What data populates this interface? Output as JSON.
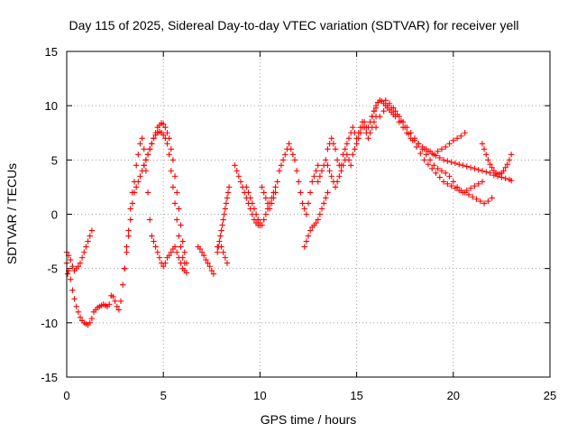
{
  "chart_data": {
    "type": "scatter",
    "title": "Day 115 of 2025, Sidereal Day-to-day VTEC variation (SDTVAR) for receiver yell",
    "xlabel": "GPS time / hours",
    "ylabel": "SDTVAR / TECUs",
    "xlim": [
      0,
      25
    ],
    "ylim": [
      -15,
      15
    ],
    "xticks": [
      "0",
      "5",
      "10",
      "15",
      "20",
      "25"
    ],
    "yticks": [
      "-15",
      "-10",
      "-5",
      "0",
      "5",
      "10",
      "15"
    ],
    "grid": true,
    "marker": "plus",
    "color": "#ff0000",
    "series": [
      {
        "name": "trace-1",
        "x": [
          0.0,
          0.05,
          0.1,
          0.2,
          0.3,
          0.4,
          0.5,
          0.6,
          0.7,
          0.8,
          0.9,
          1.0,
          1.1,
          1.2,
          1.3,
          1.4,
          1.5,
          1.6,
          1.7,
          1.8,
          1.9,
          2.0,
          2.1,
          2.2,
          2.3,
          2.4,
          2.5,
          2.6,
          2.7,
          2.8,
          2.9,
          3.0,
          3.1,
          3.2,
          3.3,
          3.4,
          3.5,
          3.6,
          3.7,
          3.8,
          3.9,
          4.0,
          4.1,
          4.2,
          4.3,
          4.4,
          4.5,
          4.6,
          4.7,
          4.8,
          4.9,
          5.0,
          5.1,
          5.2,
          5.3,
          5.4,
          5.5,
          5.6,
          5.7,
          5.8,
          5.9,
          6.0,
          6.1,
          6.2
        ],
        "y": [
          -4.5,
          -5.5,
          -5.2,
          -6.0,
          -7.0,
          -7.8,
          -8.5,
          -9.0,
          -9.5,
          -9.8,
          -10.0,
          -10.1,
          -10.2,
          -10.0,
          -9.6,
          -9.0,
          -8.8,
          -8.6,
          -8.5,
          -8.4,
          -8.3,
          -8.4,
          -8.5,
          -8.3,
          -7.5,
          -7.6,
          -8.0,
          -8.5,
          -8.8,
          -8.0,
          -6.5,
          -5.0,
          -3.0,
          -1.5,
          0.5,
          2.0,
          3.0,
          4.5,
          5.5,
          6.5,
          7.0,
          6.0,
          4.0,
          2.0,
          -0.5,
          -2.0,
          -2.5,
          -3.0,
          -3.5,
          -4.0,
          -4.5,
          -4.8,
          -4.5,
          -4.0,
          -3.8,
          -3.5,
          -3.2,
          -3.0,
          -3.5,
          -4.0,
          -4.5,
          -5.0,
          -5.2,
          -5.4
        ]
      },
      {
        "name": "trace-2",
        "x": [
          0.0,
          0.1,
          0.2,
          0.3,
          0.4,
          0.5,
          0.6,
          0.7,
          0.8,
          0.9,
          1.0,
          1.1,
          1.2,
          1.3,
          3.0,
          3.1,
          3.2,
          3.3,
          3.4,
          3.5,
          3.6,
          3.7,
          3.8,
          3.9,
          4.0,
          4.1,
          4.2,
          4.3,
          4.4,
          4.5,
          4.6,
          4.7,
          4.8,
          4.9,
          5.0,
          5.1,
          5.2,
          5.3,
          5.4,
          5.5,
          5.6,
          5.7,
          5.8,
          5.9,
          6.0,
          6.1,
          6.2
        ],
        "y": [
          -3.5,
          -3.8,
          -4.2,
          -4.8,
          -5.2,
          -5.0,
          -4.8,
          -4.5,
          -4.0,
          -3.5,
          -3.0,
          -2.5,
          -2.0,
          -1.5,
          -5.0,
          -3.5,
          -2.0,
          -0.5,
          1.0,
          2.0,
          2.5,
          3.0,
          3.5,
          4.0,
          4.5,
          5.0,
          5.5,
          6.0,
          6.5,
          7.0,
          7.5,
          8.0,
          8.2,
          8.4,
          8.3,
          8.0,
          7.5,
          7.0,
          6.0,
          5.0,
          3.5,
          2.0,
          0.5,
          -1.0,
          -2.5,
          -3.5,
          -4.5
        ]
      },
      {
        "name": "trace-3",
        "x": [
          4.0,
          4.1,
          4.2,
          4.3,
          4.4,
          4.5,
          4.6,
          4.7,
          4.8,
          4.9,
          5.0,
          5.1,
          5.2,
          5.3,
          5.4,
          5.5,
          5.6,
          5.7,
          5.8,
          5.9,
          6.0,
          6.1
        ],
        "y": [
          4.5,
          5.0,
          5.5,
          6.0,
          6.5,
          7.0,
          7.3,
          7.5,
          7.6,
          7.5,
          7.3,
          7.0,
          6.5,
          5.5,
          4.0,
          2.5,
          1.0,
          -0.5,
          -2.0,
          -3.0,
          -4.0,
          -4.5
        ]
      },
      {
        "name": "trace-4",
        "x": [
          6.8,
          6.9,
          7.0,
          7.1,
          7.2,
          7.3,
          7.4,
          7.5,
          7.6,
          7.8,
          8.0,
          8.1,
          8.2,
          8.3,
          8.7,
          8.8,
          8.9,
          9.0,
          9.1,
          9.2,
          9.3,
          9.4,
          9.5,
          9.6,
          9.7,
          9.8,
          9.9,
          10.0
        ],
        "y": [
          -3.0,
          -3.2,
          -3.5,
          -3.8,
          -4.2,
          -4.5,
          -4.8,
          -5.2,
          -5.5,
          -3.0,
          -3.0,
          -3.5,
          -4.0,
          -4.5,
          4.5,
          4.0,
          3.5,
          3.0,
          2.5,
          2.0,
          1.5,
          1.0,
          0.5,
          0.0,
          -0.5,
          -0.8,
          -1.0,
          -1.0
        ]
      },
      {
        "name": "trace-5",
        "x": [
          7.8,
          7.85,
          7.9,
          7.95,
          8.0,
          8.05,
          8.1,
          8.15,
          8.2,
          8.25,
          8.3,
          8.35,
          8.4
        ],
        "y": [
          -3.5,
          -3.0,
          -2.5,
          -2.0,
          -1.5,
          -1.0,
          -0.5,
          0.0,
          0.5,
          1.0,
          1.5,
          2.0,
          2.5
        ]
      },
      {
        "name": "trace-6",
        "x": [
          9.3,
          9.4,
          9.5,
          9.6,
          9.7,
          9.8,
          9.9,
          10.0,
          10.1,
          10.2,
          10.3,
          10.4,
          10.5,
          10.6,
          10.7,
          10.8,
          10.9,
          11.0,
          11.1,
          11.2,
          11.3,
          11.4,
          11.5,
          11.6,
          11.7,
          11.8,
          11.9,
          12.0,
          12.1,
          12.2,
          12.3,
          12.4,
          12.5,
          12.6,
          12.7,
          12.8,
          12.9,
          13.0
        ],
        "y": [
          2.5,
          2.0,
          1.5,
          1.0,
          0.5,
          0.0,
          -0.5,
          -1.0,
          2.5,
          2.0,
          1.5,
          1.0,
          0.5,
          1.0,
          1.5,
          2.0,
          3.0,
          4.0,
          4.5,
          5.0,
          5.5,
          6.0,
          6.5,
          6.0,
          5.5,
          5.0,
          4.0,
          3.0,
          2.0,
          1.0,
          0.5,
          0.0,
          1.0,
          2.0,
          3.0,
          3.5,
          4.0,
          4.5
        ]
      },
      {
        "name": "trace-7",
        "x": [
          9.9,
          10.0,
          10.1,
          10.2,
          10.3,
          10.4,
          10.5,
          10.6,
          10.7,
          10.8
        ],
        "y": [
          -0.5,
          -0.8,
          -1.0,
          -0.5,
          0.0,
          0.5,
          1.0,
          1.5,
          2.0,
          2.5
        ]
      },
      {
        "name": "trace-8",
        "x": [
          12.3,
          12.4,
          12.5,
          12.6,
          12.7,
          12.8,
          12.9,
          13.0,
          13.1,
          13.2,
          13.3,
          13.4,
          13.5
        ],
        "y": [
          -3.0,
          -2.5,
          -2.0,
          -1.5,
          -1.2,
          -1.0,
          -0.8,
          -0.5,
          0.0,
          0.5,
          1.0,
          1.5,
          2.0
        ]
      },
      {
        "name": "trace-9",
        "x": [
          13.0,
          13.1,
          13.2,
          13.3,
          13.4,
          13.5,
          13.6,
          13.7,
          13.8,
          13.9,
          14.0,
          14.1,
          14.2,
          14.3,
          14.4,
          14.5,
          14.6,
          14.7,
          14.8,
          14.9,
          15.0,
          15.1,
          15.2,
          15.3,
          15.4,
          15.5,
          15.6,
          15.7,
          15.8,
          15.9,
          16.0
        ],
        "y": [
          3.0,
          3.5,
          4.0,
          4.5,
          5.0,
          4.5,
          4.0,
          3.5,
          3.0,
          2.5,
          3.0,
          3.5,
          4.5,
          5.5,
          6.0,
          6.5,
          7.0,
          7.5,
          8.0,
          7.5,
          7.0,
          7.5,
          8.0,
          8.5,
          8.5,
          8.0,
          8.0,
          8.5,
          9.0,
          9.5,
          9.8
        ]
      },
      {
        "name": "trace-10",
        "x": [
          13.5,
          13.6,
          13.7,
          13.8,
          13.9,
          14.0,
          14.1,
          14.2,
          14.3,
          14.4,
          14.5,
          14.6,
          14.7,
          14.8,
          14.9,
          15.0,
          15.1,
          15.2,
          15.3,
          15.4,
          15.5,
          15.6,
          15.7,
          15.8,
          15.9,
          16.0
        ],
        "y": [
          6.0,
          6.5,
          7.0,
          6.5,
          6.0,
          5.0,
          4.5,
          4.0,
          4.5,
          5.0,
          5.5,
          5.0,
          4.5,
          5.5,
          6.0,
          6.5,
          7.0,
          7.5,
          8.0,
          8.0,
          7.5,
          7.0,
          7.5,
          8.0,
          8.5,
          9.0
        ]
      },
      {
        "name": "trace-11",
        "x": [
          15.8,
          15.9,
          16.0,
          16.1,
          16.2,
          16.3,
          16.4,
          16.5,
          16.6,
          16.7,
          16.8,
          16.9,
          17.0,
          17.2,
          17.4,
          17.6,
          17.8,
          18.0,
          18.2,
          18.4,
          18.6,
          18.8,
          19.0,
          19.2,
          19.4,
          19.6,
          19.8,
          20.0,
          20.2,
          20.4,
          20.6
        ],
        "y": [
          9.0,
          9.5,
          10.0,
          10.3,
          10.5,
          10.4,
          10.2,
          10.0,
          9.8,
          9.6,
          9.4,
          9.2,
          9.0,
          8.5,
          8.0,
          7.5,
          7.0,
          6.8,
          6.5,
          6.2,
          6.0,
          5.8,
          5.5,
          5.8,
          6.0,
          6.2,
          6.5,
          6.8,
          7.0,
          7.2,
          7.5
        ]
      },
      {
        "name": "trace-12",
        "x": [
          16.0,
          16.2,
          16.4,
          16.6,
          16.8,
          17.0,
          17.2,
          17.4,
          17.6,
          17.8,
          18.0,
          18.2,
          18.4,
          18.6,
          18.8,
          19.0,
          19.2,
          19.4,
          19.6,
          19.8,
          20.0,
          20.2,
          20.4,
          20.6,
          20.8,
          21.0,
          21.2,
          21.4,
          21.6,
          21.8,
          22.0
        ],
        "y": [
          8.0,
          9.0,
          9.5,
          10.0,
          9.8,
          9.5,
          9.0,
          8.5,
          8.0,
          7.5,
          7.0,
          6.5,
          6.0,
          5.5,
          5.0,
          4.5,
          4.2,
          4.0,
          3.8,
          3.5,
          3.0,
          2.5,
          2.2,
          2.0,
          1.8,
          1.6,
          1.4,
          1.2,
          1.0,
          1.2,
          1.5
        ]
      },
      {
        "name": "trace-13",
        "x": [
          16.5,
          16.7,
          16.9,
          17.1,
          17.3,
          17.5,
          17.7,
          17.9,
          18.1,
          18.3,
          18.5,
          18.7,
          18.9,
          19.1,
          19.3,
          19.5,
          19.7,
          19.9,
          20.1,
          20.3,
          20.5,
          20.7,
          20.9,
          21.1,
          21.3,
          21.5
        ],
        "y": [
          10.5,
          10.2,
          9.8,
          9.2,
          8.6,
          8.0,
          7.4,
          6.8,
          6.2,
          5.6,
          5.0,
          4.6,
          4.2,
          3.8,
          3.4,
          3.0,
          2.8,
          2.6,
          2.4,
          2.2,
          2.0,
          2.2,
          2.4,
          2.6,
          2.8,
          3.0
        ]
      },
      {
        "name": "trace-14",
        "x": [
          18.5,
          18.7,
          18.9,
          19.1,
          19.3,
          19.5,
          19.7,
          19.9,
          20.1,
          20.3,
          20.5,
          20.7,
          20.9,
          21.1,
          21.3,
          21.5,
          21.7,
          21.9,
          22.1,
          22.3,
          22.5,
          22.7,
          22.9,
          23.0
        ],
        "y": [
          6.0,
          5.8,
          5.6,
          5.4,
          5.2,
          5.0,
          4.9,
          4.8,
          4.7,
          4.6,
          4.5,
          4.4,
          4.3,
          4.2,
          4.1,
          4.0,
          3.9,
          3.8,
          3.6,
          3.5,
          3.4,
          3.3,
          3.2,
          3.1
        ]
      },
      {
        "name": "trace-15",
        "x": [
          21.5,
          21.6,
          21.7,
          21.8,
          21.9,
          22.0,
          22.1,
          22.2,
          22.3,
          22.4,
          22.5,
          22.6,
          22.7,
          22.8,
          22.9,
          23.0
        ],
        "y": [
          6.5,
          6.0,
          5.5,
          5.0,
          4.6,
          4.3,
          4.0,
          3.8,
          3.7,
          3.7,
          3.8,
          4.0,
          4.3,
          4.6,
          5.0,
          5.5
        ]
      }
    ]
  }
}
